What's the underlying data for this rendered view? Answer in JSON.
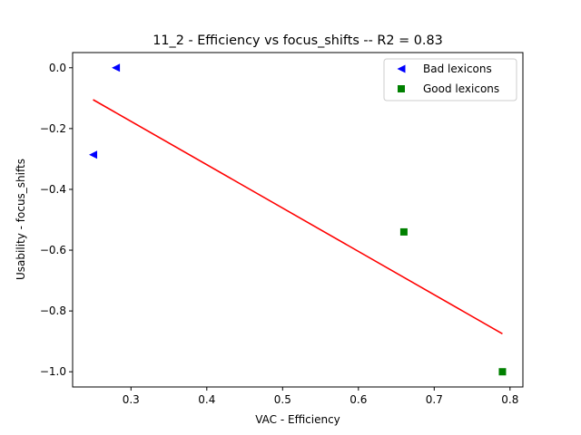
{
  "chart_data": {
    "type": "scatter",
    "title": "11_2 - Efficiency  vs  focus_shifts -- R2 = 0.83",
    "xlabel": "VAC - Efficiency",
    "ylabel": "Usability - focus_shifts",
    "xlim": [
      0.223,
      0.817
    ],
    "ylim": [
      -1.05,
      0.05
    ],
    "xticks": [
      0.3,
      0.4,
      0.5,
      0.6,
      0.7,
      0.8
    ],
    "xtick_labels": [
      "0.3",
      "0.4",
      "0.5",
      "0.6",
      "0.7",
      "0.8"
    ],
    "yticks": [
      0.0,
      -0.2,
      -0.4,
      -0.6,
      -0.8,
      -1.0
    ],
    "ytick_labels": [
      "0.0",
      "−0.2",
      "−0.4",
      "−0.6",
      "−0.8",
      "−1.0"
    ],
    "grid": false,
    "legend_position": "top-right",
    "series": [
      {
        "name": "Bad lexicons",
        "marker": "triangle-left",
        "color": "#0000ff",
        "points": [
          [
            0.28,
            0.0
          ],
          [
            0.25,
            -0.286
          ]
        ]
      },
      {
        "name": "Good lexicons",
        "marker": "square",
        "color": "#008000",
        "points": [
          [
            0.66,
            -0.54
          ],
          [
            0.79,
            -1.0
          ]
        ]
      }
    ],
    "fit_line": {
      "color": "#ff0000",
      "points": [
        [
          0.25,
          -0.105
        ],
        [
          0.79,
          -0.875
        ]
      ]
    }
  }
}
